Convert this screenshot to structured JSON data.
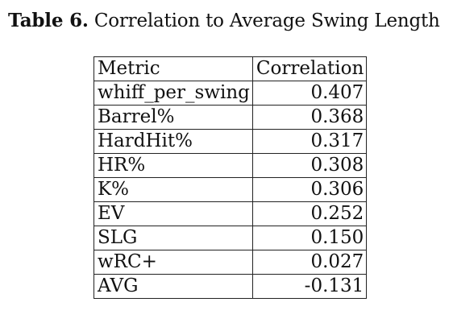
{
  "caption": {
    "label": "Table 6.",
    "text": "Correlation to Average Swing Length"
  },
  "table": {
    "headers": [
      "Metric",
      "Correlation"
    ],
    "rows": [
      {
        "metric": "whiff_per_swing",
        "correlation": "0.407"
      },
      {
        "metric": "Barrel%",
        "correlation": "0.368"
      },
      {
        "metric": "HardHit%",
        "correlation": "0.317"
      },
      {
        "metric": "HR%",
        "correlation": "0.308"
      },
      {
        "metric": "K%",
        "correlation": "0.306"
      },
      {
        "metric": "EV",
        "correlation": "0.252"
      },
      {
        "metric": "SLG",
        "correlation": "0.150"
      },
      {
        "metric": "wRC+",
        "correlation": "0.027"
      },
      {
        "metric": "AVG",
        "correlation": "-0.131"
      }
    ]
  }
}
